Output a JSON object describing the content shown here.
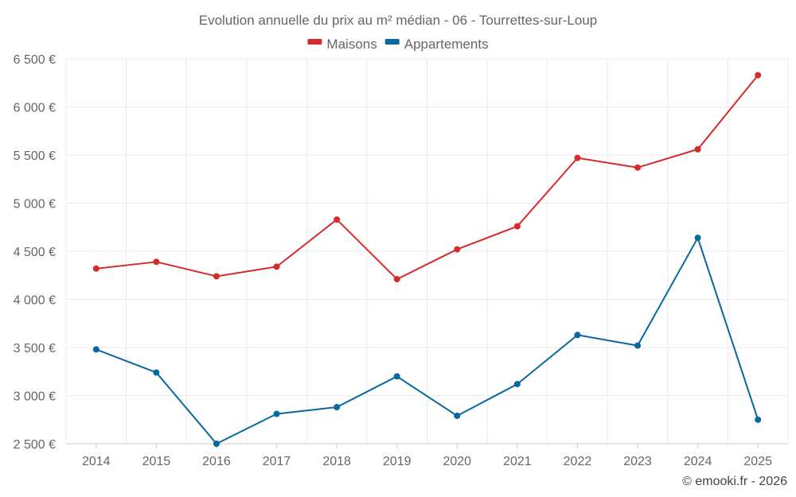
{
  "chart_data": {
    "type": "line",
    "title": "Evolution annuelle du prix au m² médian - 06 - Tourrettes-sur-Loup",
    "categories": [
      "2014",
      "2015",
      "2016",
      "2017",
      "2018",
      "2019",
      "2020",
      "2021",
      "2022",
      "2023",
      "2024",
      "2025"
    ],
    "series": [
      {
        "name": "Maisons",
        "color": "#d62b2b",
        "values": [
          4320,
          4390,
          4240,
          4340,
          4830,
          4210,
          4520,
          4760,
          5470,
          5370,
          5560,
          6330
        ]
      },
      {
        "name": "Appartements",
        "color": "#07679f",
        "values": [
          3480,
          3240,
          2500,
          2810,
          2880,
          3200,
          2790,
          3120,
          3630,
          3520,
          4640,
          2750
        ]
      }
    ],
    "ylim": [
      2500,
      6500
    ],
    "yticks": [
      2500,
      3000,
      3500,
      4000,
      4500,
      5000,
      5500,
      6000,
      6500
    ],
    "ytick_labels": [
      "2 500 €",
      "3 000 €",
      "3 500 €",
      "4 000 €",
      "4 500 €",
      "5 000 €",
      "5 500 €",
      "6 000 €",
      "6 500 €"
    ],
    "grid": true,
    "legend_position": "top-center",
    "xlabel": "",
    "ylabel": ""
  },
  "credit": "© emooki.fr - 2026"
}
